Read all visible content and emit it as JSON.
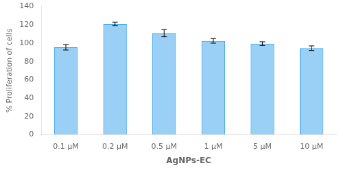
{
  "chart_data": {
    "type": "bar",
    "categories": [
      "0.1 μM",
      "0.2 μM",
      "0.5 μM",
      "1 μM",
      "5 μM",
      "10 μM"
    ],
    "values": [
      95.5,
      121.0,
      111.0,
      102.5,
      99.5,
      94.5
    ],
    "errors": [
      3.0,
      2.0,
      4.0,
      2.5,
      2.0,
      2.5
    ],
    "xlabel": "AgNPs-EC",
    "ylabel": "% Proliferation of cells",
    "ylim": [
      0,
      140
    ],
    "yticks": [
      0,
      20,
      40,
      60,
      80,
      100,
      120,
      140
    ],
    "grid": false
  }
}
